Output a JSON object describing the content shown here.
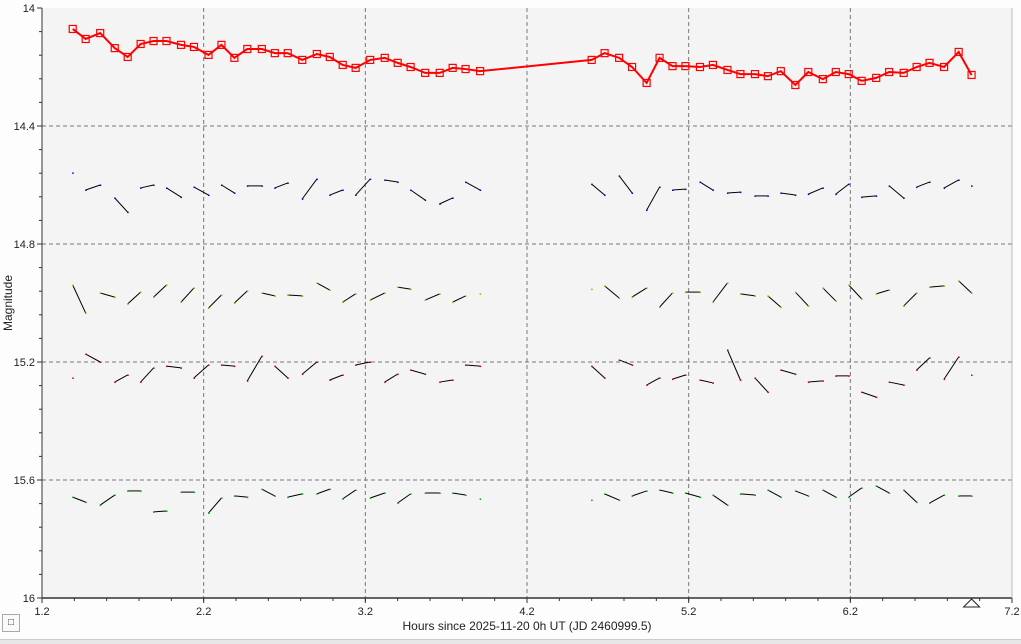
{
  "chart_data": {
    "type": "line",
    "title": "",
    "xlabel": "Hours since 2025-11-20 0h UT (JD 2460999.5)",
    "ylabel": "Magnitude",
    "xlim": [
      1.2,
      7.2
    ],
    "ylim": [
      14,
      16
    ],
    "y_inverted": true,
    "xticks": [
      "1.2",
      "2.2",
      "3.2",
      "4.2",
      "5.2",
      "6.2",
      "7.2"
    ],
    "yticks": [
      "14",
      "14.4",
      "14.8",
      "15.2",
      "15.6",
      "16"
    ],
    "grid": true,
    "x": [
      1.39,
      1.47,
      1.56,
      1.65,
      1.73,
      1.81,
      1.89,
      1.97,
      2.06,
      2.14,
      2.23,
      2.31,
      2.39,
      2.47,
      2.56,
      2.64,
      2.72,
      2.81,
      2.9,
      2.98,
      3.06,
      3.14,
      3.23,
      3.32,
      3.4,
      3.48,
      3.57,
      3.66,
      3.74,
      3.82,
      3.91,
      4.6,
      4.68,
      4.77,
      4.85,
      4.94,
      5.02,
      5.1,
      5.18,
      5.27,
      5.35,
      5.44,
      5.52,
      5.61,
      5.69,
      5.77,
      5.86,
      5.94,
      6.03,
      6.11,
      6.19,
      6.27,
      6.36,
      6.44,
      6.53,
      6.61,
      6.69,
      6.78,
      6.87,
      6.95
    ],
    "series": [
      {
        "role": "target",
        "color": "#ff0000",
        "marker": "square",
        "values": [
          14.071,
          14.105,
          14.085,
          14.136,
          14.166,
          14.122,
          14.112,
          14.112,
          14.125,
          14.132,
          14.159,
          14.125,
          14.169,
          14.139,
          14.139,
          14.153,
          14.153,
          14.176,
          14.156,
          14.166,
          14.193,
          14.203,
          14.176,
          14.169,
          14.186,
          14.2,
          14.22,
          14.22,
          14.203,
          14.207,
          14.214,
          14.176,
          14.153,
          14.169,
          14.2,
          14.254,
          14.169,
          14.197,
          14.197,
          14.2,
          14.193,
          14.21,
          14.224,
          14.224,
          14.231,
          14.214,
          14.261,
          14.217,
          14.241,
          14.217,
          14.224,
          14.247,
          14.237,
          14.217,
          14.22,
          14.2,
          14.186,
          14.2,
          14.149,
          14.227
        ]
      },
      {
        "role": "comparison",
        "color": "#000000",
        "values": [
          14.559,
          14.617,
          14.6,
          14.644,
          14.692,
          14.61,
          14.6,
          14.61,
          14.641,
          14.607,
          14.634,
          14.6,
          14.627,
          14.603,
          14.603,
          14.61,
          14.593,
          14.647,
          14.58,
          14.634,
          14.617,
          14.634,
          14.58,
          14.583,
          14.59,
          14.617,
          14.651,
          14.664,
          14.644,
          14.59,
          14.617,
          14.597,
          14.634,
          14.569,
          14.627,
          14.685,
          14.607,
          14.617,
          14.614,
          14.59,
          14.617,
          14.627,
          14.624,
          14.637,
          14.637,
          14.627,
          14.634,
          14.631,
          14.61,
          14.631,
          14.597,
          14.641,
          14.637,
          14.603,
          14.644,
          14.607,
          14.59,
          14.61,
          14.583,
          14.603
        ]
      },
      {
        "role": "comparison",
        "color": "#000000",
        "values": [
          14.939,
          15.034,
          14.966,
          14.98,
          15.003,
          14.963,
          14.98,
          14.939,
          14.997,
          14.949,
          15.017,
          14.973,
          15.0,
          14.959,
          14.966,
          14.976,
          14.973,
          14.976,
          14.932,
          14.956,
          14.997,
          14.969,
          14.99,
          14.966,
          14.946,
          14.953,
          14.99,
          14.969,
          14.997,
          14.976,
          14.969,
          14.953,
          14.942,
          14.983,
          14.98,
          14.949,
          15.014,
          14.966,
          14.963,
          14.963,
          14.997,
          14.932,
          14.969,
          14.976,
          14.976,
          15.014,
          14.963,
          15.01,
          14.949,
          14.993,
          14.939,
          14.986,
          14.969,
          14.956,
          15.01,
          14.966,
          14.946,
          14.942,
          14.925,
          14.966
        ]
      },
      {
        "role": "comparison",
        "color": "#000000",
        "values": [
          15.254,
          15.173,
          15.2,
          15.268,
          15.244,
          15.268,
          15.22,
          15.214,
          15.22,
          15.254,
          15.21,
          15.21,
          15.214,
          15.264,
          15.18,
          15.214,
          15.254,
          15.241,
          15.2,
          15.261,
          15.244,
          15.21,
          15.2,
          15.268,
          15.241,
          15.227,
          15.241,
          15.268,
          15.261,
          15.21,
          15.214,
          15.214,
          15.254,
          15.193,
          15.21,
          15.278,
          15.254,
          15.258,
          15.244,
          15.261,
          15.271,
          15.159,
          15.261,
          15.254,
          15.302,
          15.227,
          15.241,
          15.268,
          15.264,
          15.247,
          15.247,
          15.302,
          15.319,
          15.268,
          15.278,
          15.227,
          15.186,
          15.258,
          15.183,
          15.244
        ]
      },
      {
        "role": "comparison",
        "color": "#000000",
        "values": [
          15.658,
          15.675,
          15.685,
          15.651,
          15.637,
          15.637,
          15.708,
          15.705,
          15.641,
          15.641,
          15.712,
          15.661,
          15.654,
          15.658,
          15.631,
          15.654,
          15.658,
          15.647,
          15.647,
          15.631,
          15.664,
          15.634,
          15.661,
          15.644,
          15.678,
          15.647,
          15.644,
          15.644,
          15.644,
          15.651,
          15.664,
          15.668,
          15.647,
          15.668,
          15.654,
          15.637,
          15.634,
          15.644,
          15.644,
          15.658,
          15.651,
          15.685,
          15.647,
          15.651,
          15.634,
          15.658,
          15.637,
          15.654,
          15.634,
          15.658,
          15.658,
          15.627,
          15.62,
          15.644,
          15.634,
          15.675,
          15.678,
          15.651,
          15.654,
          15.654
        ]
      }
    ],
    "cursor_marker_x": 6.95
  },
  "controls": {
    "corner_button_label": "□"
  }
}
